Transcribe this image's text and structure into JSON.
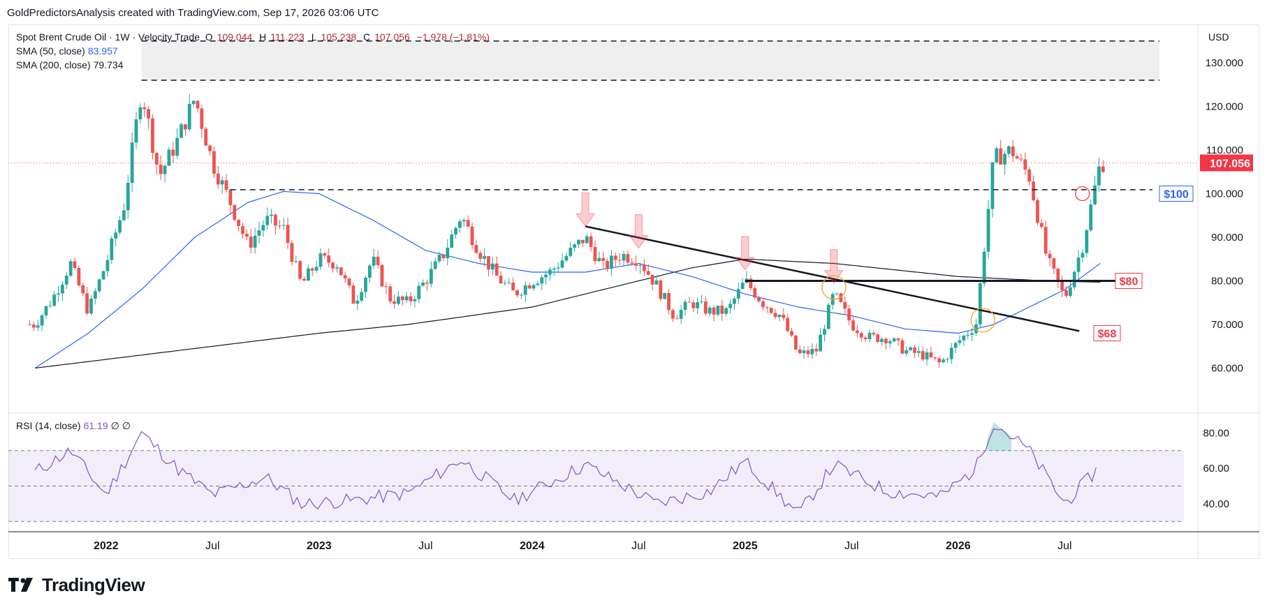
{
  "header": {
    "attribution": "GoldPredictorsAnalysis created with TradingView.com, Sep 17, 2026 03:06 UTC"
  },
  "legend": {
    "symbol": "Spot Brent Crude Oil · 1W · Velocity Trade",
    "open_label": "O",
    "open": "109.044",
    "high_label": "H",
    "high": "111.223",
    "low_label": "L",
    "low": "105.238",
    "close_label": "C",
    "close": "107.056",
    "change": "−1.978 (−1.81%)",
    "sma50_label": "SMA (50, close)",
    "sma50_value": "83.957",
    "sma200_label": "SMA (200, close)",
    "sma200_value": "79.734",
    "rsi_label": "RSI (14, close)",
    "rsi_value": "61.19",
    "rsi_extra": "∅ ∅"
  },
  "currency": "USD",
  "brand": {
    "name": "TradingView"
  },
  "colors": {
    "up": "#26a69a",
    "down": "#ef5350",
    "sma50": "#2962ff",
    "sma200": "#131722",
    "rsi": "#7e57c2",
    "price_tag": "#f23645",
    "label_blue": "#2962ff",
    "label_red": "#f23645"
  },
  "chart_data": [
    {
      "type": "candlestick",
      "title": "Spot Brent Crude Oil · 1W · Velocity Trade",
      "timeframe": "weekly",
      "x_range": [
        "2021-09",
        "2026-09"
      ],
      "ylim": [
        50,
        138
      ],
      "y_ticks": [
        "130.000",
        "120.000",
        "110.000",
        "100.000",
        "90.000",
        "80.000",
        "70.000",
        "60.000"
      ],
      "x_tick_labels": [
        "2022",
        "Jul",
        "2023",
        "Jul",
        "2024",
        "Jul",
        "2025",
        "Jul",
        "2026",
        "Jul"
      ],
      "last_price": "107.056",
      "price_path": [
        [
          "2021-09",
          70
        ],
        [
          "2021-10",
          76
        ],
        [
          "2021-11",
          84
        ],
        [
          "2021-12",
          73
        ],
        [
          "2022-01",
          84
        ],
        [
          "2022-02",
          97
        ],
        [
          "2022-03",
          124
        ],
        [
          "2022-04",
          104
        ],
        [
          "2022-05",
          112
        ],
        [
          "2022-06",
          122
        ],
        [
          "2022-07",
          107
        ],
        [
          "2022-08",
          98
        ],
        [
          "2022-09",
          88
        ],
        [
          "2022-10",
          94
        ],
        [
          "2022-11",
          92
        ],
        [
          "2022-12",
          79
        ],
        [
          "2023-01",
          85
        ],
        [
          "2023-02",
          84
        ],
        [
          "2023-03",
          75
        ],
        [
          "2023-04",
          85
        ],
        [
          "2023-05",
          76
        ],
        [
          "2023-06",
          75
        ],
        [
          "2023-07",
          80
        ],
        [
          "2023-08",
          86
        ],
        [
          "2023-09",
          95
        ],
        [
          "2023-10",
          87
        ],
        [
          "2023-11",
          81
        ],
        [
          "2023-12",
          77
        ],
        [
          "2024-01",
          80
        ],
        [
          "2024-02",
          82
        ],
        [
          "2024-03",
          86
        ],
        [
          "2024-04",
          90
        ],
        [
          "2024-05",
          83
        ],
        [
          "2024-06",
          86
        ],
        [
          "2024-07",
          85
        ],
        [
          "2024-08",
          79
        ],
        [
          "2024-09",
          72
        ],
        [
          "2024-10",
          75
        ],
        [
          "2024-11",
          73
        ],
        [
          "2024-12",
          73
        ],
        [
          "2025-01",
          80
        ],
        [
          "2025-02",
          75
        ],
        [
          "2025-03",
          72
        ],
        [
          "2025-04",
          63
        ],
        [
          "2025-05",
          64
        ],
        [
          "2025-06",
          77
        ],
        [
          "2025-07",
          70
        ],
        [
          "2025-08",
          67
        ],
        [
          "2025-09",
          67
        ],
        [
          "2025-10",
          64
        ],
        [
          "2025-11",
          63
        ],
        [
          "2025-12",
          61
        ],
        [
          "2026-01",
          66
        ],
        [
          "2026-02",
          70
        ],
        [
          "2026-03",
          108
        ],
        [
          "2026-04",
          110
        ],
        [
          "2026-05",
          104
        ],
        [
          "2026-06",
          85
        ],
        [
          "2026-07",
          76
        ],
        [
          "2026-08",
          88
        ],
        [
          "2026-09",
          107
        ]
      ],
      "sma50_path": [
        [
          "2021-09",
          60
        ],
        [
          "2021-12",
          68
        ],
        [
          "2022-03",
          78
        ],
        [
          "2022-06",
          90
        ],
        [
          "2022-09",
          98
        ],
        [
          "2022-11",
          100.5
        ],
        [
          "2023-01",
          100
        ],
        [
          "2023-04",
          94
        ],
        [
          "2023-07",
          87
        ],
        [
          "2023-10",
          84
        ],
        [
          "2024-01",
          82
        ],
        [
          "2024-04",
          82
        ],
        [
          "2024-07",
          84
        ],
        [
          "2024-10",
          81
        ],
        [
          "2025-01",
          77
        ],
        [
          "2025-04",
          74
        ],
        [
          "2025-07",
          72
        ],
        [
          "2025-10",
          69
        ],
        [
          "2026-01",
          68
        ],
        [
          "2026-03",
          70
        ],
        [
          "2026-05",
          74
        ],
        [
          "2026-07",
          78
        ],
        [
          "2026-09",
          84
        ]
      ],
      "sma200_path": [
        [
          "2021-09",
          60
        ],
        [
          "2022-01",
          62
        ],
        [
          "2022-06",
          64.5
        ],
        [
          "2023-01",
          68
        ],
        [
          "2023-06",
          70
        ],
        [
          "2024-01",
          74
        ],
        [
          "2024-06",
          79
        ],
        [
          "2024-10",
          83
        ],
        [
          "2025-01",
          85
        ],
        [
          "2025-06",
          84
        ],
        [
          "2026-01",
          81
        ],
        [
          "2026-06",
          80
        ],
        [
          "2026-09",
          79.7
        ]
      ],
      "annotations": {
        "resistance_zone": [
          126,
          135
        ],
        "horizontal_levels": [
          126,
          135,
          100.9,
          80
        ],
        "trendline": [
          [
            "2024-04",
            92.5
          ],
          [
            "2026-09",
            68.5
          ]
        ],
        "labels": [
          {
            "text": "$100",
            "value": 100,
            "color": "blue"
          },
          {
            "text": "$80",
            "value": 80,
            "color": "red"
          },
          {
            "text": "$68",
            "value": 68,
            "color": "red"
          }
        ],
        "down_arrows": [
          "2024-04",
          "2024-07",
          "2025-01",
          "2025-06"
        ]
      }
    },
    {
      "type": "line",
      "title": "RSI (14, close)",
      "ylim": [
        25,
        90
      ],
      "y_ticks": [
        "80.00",
        "60.00",
        "40.00"
      ],
      "bands": [
        30,
        50,
        70
      ],
      "rsi_path": [
        [
          "2021-09",
          58
        ],
        [
          "2021-11",
          70
        ],
        [
          "2022-01",
          45
        ],
        [
          "2022-03",
          80
        ],
        [
          "2022-05",
          60
        ],
        [
          "2022-07",
          45
        ],
        [
          "2022-10",
          55
        ],
        [
          "2022-12",
          40
        ],
        [
          "2023-03",
          42
        ],
        [
          "2023-06",
          46
        ],
        [
          "2023-09",
          65
        ],
        [
          "2023-12",
          42
        ],
        [
          "2024-04",
          62
        ],
        [
          "2024-08",
          40
        ],
        [
          "2024-11",
          47
        ],
        [
          "2025-01",
          64
        ],
        [
          "2025-04",
          34
        ],
        [
          "2025-06",
          62
        ],
        [
          "2025-09",
          47
        ],
        [
          "2025-12",
          44
        ],
        [
          "2026-02",
          60
        ],
        [
          "2026-03",
          86
        ],
        [
          "2026-05",
          70
        ],
        [
          "2026-07",
          40
        ],
        [
          "2026-09",
          61
        ]
      ],
      "last_value": 61.19
    }
  ]
}
